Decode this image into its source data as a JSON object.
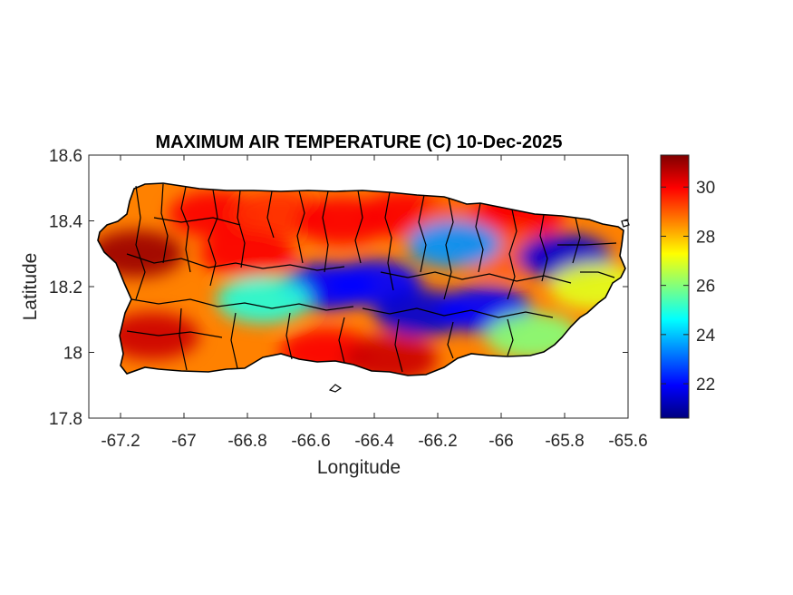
{
  "title": "MAXIMUM AIR TEMPERATURE (C) 10-Dec-2025",
  "xlabel": "Longitude",
  "ylabel": "Latitude",
  "map_data": {
    "type": "filled-contour-map",
    "region_shown": "Puerto Rico",
    "variable_units": "C",
    "xlim": [
      -67.3,
      -65.6
    ],
    "ylim": [
      17.8,
      18.6
    ],
    "x_ticks": [
      -67.2,
      -67,
      -66.8,
      -66.6,
      -66.4,
      -66.2,
      -66,
      -65.8,
      -65.6
    ],
    "x_tick_labels": [
      "-67.2",
      "-67",
      "-66.8",
      "-66.6",
      "-66.4",
      "-66.2",
      "-66",
      "-65.8",
      "-65.6"
    ],
    "y_ticks": [
      17.8,
      18,
      18.2,
      18.4,
      18.6
    ],
    "y_tick_labels": [
      "17.8",
      "18",
      "18.2",
      "18.4",
      "18.6"
    ],
    "colorbar": {
      "colormap": "jet",
      "clim": [
        20.6,
        31.3
      ],
      "ticks": [
        22,
        24,
        26,
        28,
        30
      ],
      "tick_labels": [
        "22",
        "24",
        "26",
        "28",
        "30"
      ],
      "colors": [
        "#00007f",
        "#0000ff",
        "#007fff",
        "#00ffff",
        "#7fff7f",
        "#ffff00",
        "#ff7f00",
        "#ff0000",
        "#7f0000"
      ]
    },
    "temperature_hotspots": [
      {
        "lon": -67.15,
        "lat": 18.3,
        "value": 31
      },
      {
        "lon": -67.1,
        "lat": 18.05,
        "value": 30.5
      },
      {
        "lon": -66.9,
        "lat": 18.42,
        "value": 30
      },
      {
        "lon": -66.7,
        "lat": 18.42,
        "value": 29.5
      },
      {
        "lon": -66.5,
        "lat": 18.4,
        "value": 30
      },
      {
        "lon": -66.3,
        "lat": 18.42,
        "value": 30
      },
      {
        "lon": -66.55,
        "lat": 18.0,
        "value": 30
      },
      {
        "lon": -66.35,
        "lat": 17.98,
        "value": 30.5
      },
      {
        "lon": -66.1,
        "lat": 18.4,
        "value": 29
      },
      {
        "lon": -65.95,
        "lat": 18.42,
        "value": 30
      },
      {
        "lon": -66.8,
        "lat": 18.3,
        "value": 30
      },
      {
        "lon": -66.0,
        "lat": 18.3,
        "value": 29
      },
      {
        "lon": -66.55,
        "lat": 18.2,
        "value": 22
      },
      {
        "lon": -66.4,
        "lat": 18.21,
        "value": 22
      },
      {
        "lon": -66.25,
        "lat": 18.12,
        "value": 21.5
      },
      {
        "lon": -66.05,
        "lat": 18.13,
        "value": 22
      },
      {
        "lon": -65.8,
        "lat": 18.29,
        "value": 21.5
      },
      {
        "lon": -66.15,
        "lat": 18.33,
        "value": 23.5
      },
      {
        "lon": -66.75,
        "lat": 18.16,
        "value": 25
      },
      {
        "lon": -65.9,
        "lat": 18.05,
        "value": 26
      },
      {
        "lon": -65.7,
        "lat": 18.2,
        "value": 27
      }
    ]
  }
}
